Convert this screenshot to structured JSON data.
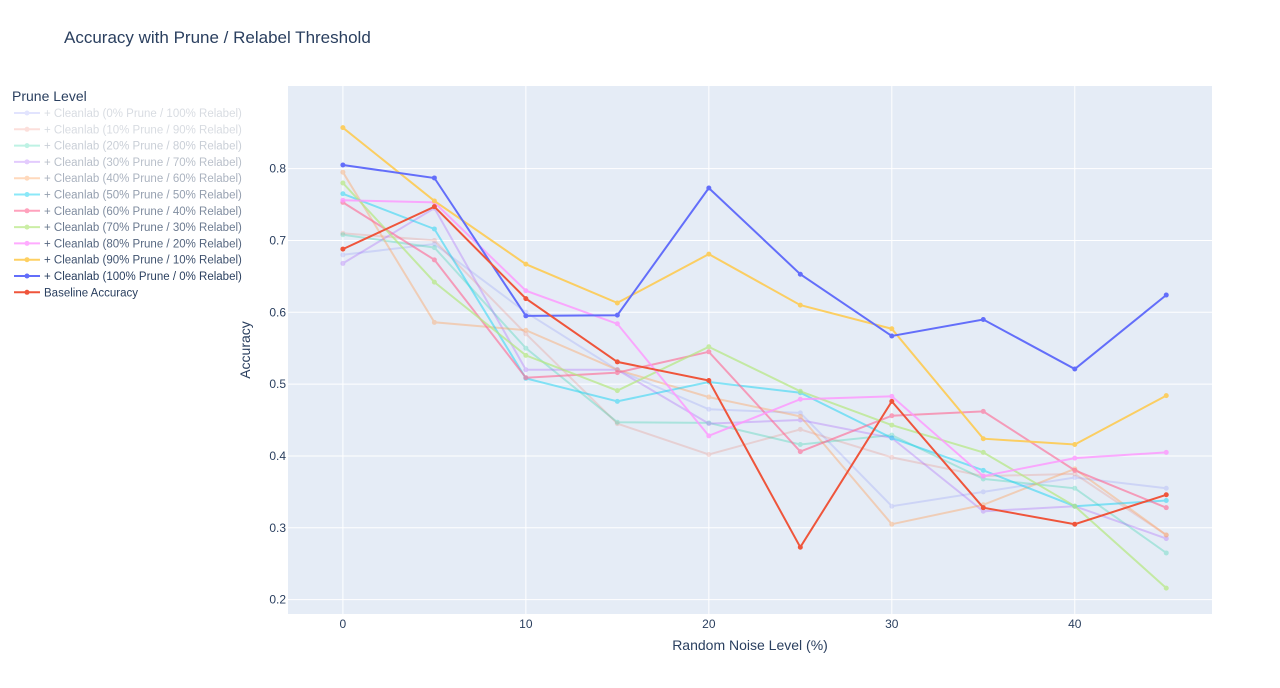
{
  "chart_data": {
    "type": "line",
    "title": "Accuracy with Prune / Relabel Threshold",
    "xlabel": "Random Noise Level (%)",
    "ylabel": "Accuracy",
    "xlim": [
      -3,
      47.5
    ],
    "ylim": [
      0.18,
      0.915
    ],
    "xticks": [
      0,
      10,
      20,
      30,
      40
    ],
    "yticks": [
      0.2,
      0.3,
      0.4,
      0.5,
      0.6,
      0.7,
      0.8
    ],
    "grid": true,
    "legend": {
      "title": "Prune Level",
      "placement": "top-left"
    },
    "x": [
      0,
      5,
      10,
      15,
      20,
      25,
      30,
      35,
      40,
      45
    ],
    "series": [
      {
        "name": "+ Cleanlab (0% Prune / 100% Relabel)",
        "color": "#636efa",
        "opacity": 0.18,
        "values": [
          0.68,
          0.695,
          0.6,
          0.52,
          0.465,
          0.46,
          0.33,
          0.35,
          0.37,
          0.355
        ]
      },
      {
        "name": "+ Cleanlab (10% Prune / 90% Relabel)",
        "color": "#ef553b",
        "opacity": 0.18,
        "values": [
          0.71,
          0.7,
          0.57,
          0.445,
          0.402,
          0.437,
          0.398,
          0.372,
          0.375,
          0.29
        ]
      },
      {
        "name": "+ Cleanlab (20% Prune / 80% Relabel)",
        "color": "#00cc96",
        "opacity": 0.25,
        "values": [
          0.708,
          0.69,
          0.55,
          0.447,
          0.446,
          0.416,
          0.429,
          0.368,
          0.355,
          0.265
        ]
      },
      {
        "name": "+ Cleanlab (30% Prune / 70% Relabel)",
        "color": "#ab63fa",
        "opacity": 0.33,
        "values": [
          0.668,
          0.745,
          0.52,
          0.52,
          0.445,
          0.45,
          0.425,
          0.323,
          0.33,
          0.285
        ]
      },
      {
        "name": "+ Cleanlab (40% Prune / 60% Relabel)",
        "color": "#ffa15a",
        "opacity": 0.4,
        "values": [
          0.795,
          0.586,
          0.575,
          0.52,
          0.482,
          0.455,
          0.305,
          0.332,
          0.382,
          0.29
        ]
      },
      {
        "name": "+ Cleanlab (50% Prune / 50% Relabel)",
        "color": "#19d3f3",
        "opacity": 0.5,
        "values": [
          0.765,
          0.716,
          0.508,
          0.476,
          0.503,
          0.488,
          0.425,
          0.38,
          0.33,
          0.338
        ]
      },
      {
        "name": "+ Cleanlab (60% Prune / 40% Relabel)",
        "color": "#ff6692",
        "opacity": 0.6,
        "values": [
          0.753,
          0.673,
          0.509,
          0.516,
          0.545,
          0.406,
          0.456,
          0.462,
          0.38,
          0.328
        ]
      },
      {
        "name": "+ Cleanlab (70% Prune / 30% Relabel)",
        "color": "#b6e880",
        "opacity": 0.7,
        "values": [
          0.78,
          0.642,
          0.54,
          0.491,
          0.552,
          0.49,
          0.443,
          0.405,
          0.33,
          0.216
        ]
      },
      {
        "name": "+ Cleanlab (80% Prune / 20% Relabel)",
        "color": "#ff97ff",
        "opacity": 0.8,
        "values": [
          0.756,
          0.753,
          0.63,
          0.584,
          0.428,
          0.479,
          0.483,
          0.372,
          0.397,
          0.405
        ]
      },
      {
        "name": "+ Cleanlab (90% Prune / 10% Relabel)",
        "color": "#fecb52",
        "opacity": 0.9,
        "values": [
          0.857,
          0.755,
          0.667,
          0.613,
          0.681,
          0.61,
          0.577,
          0.424,
          0.416,
          0.484
        ]
      },
      {
        "name": "+ Cleanlab (100% Prune / 0% Relabel)",
        "color": "#636efa",
        "opacity": 1.0,
        "values": [
          0.805,
          0.787,
          0.595,
          0.596,
          0.773,
          0.653,
          0.567,
          0.59,
          0.521,
          0.624
        ]
      },
      {
        "name": "Baseline Accuracy",
        "color": "#ef553b",
        "opacity": 1.0,
        "values": [
          0.688,
          0.747,
          0.619,
          0.531,
          0.505,
          0.273,
          0.476,
          0.328,
          0.305,
          0.346
        ]
      }
    ]
  }
}
